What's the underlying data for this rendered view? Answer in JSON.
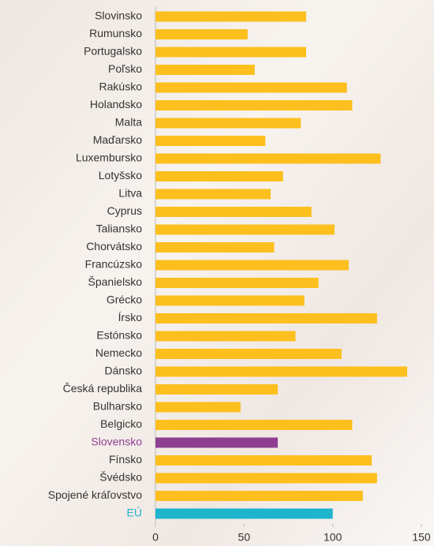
{
  "chart_data": {
    "type": "bar",
    "orientation": "horizontal",
    "categories": [
      "Slovinsko",
      "Rumunsko",
      "Portugalsko",
      "Poľsko",
      "Rakúsko",
      "Holandsko",
      "Malta",
      "Maďarsko",
      "Luxembursko",
      "Lotyšsko",
      "Litva",
      "Cyprus",
      "Taliansko",
      "Chorvátsko",
      "Francúzsko",
      "Španielsko",
      "Grécko",
      "Írsko",
      "Estónsko",
      "Nemecko",
      "Dánsko",
      "Česká republika",
      "Bulharsko",
      "Belgicko",
      "Slovensko",
      "Fínsko",
      "Švédsko",
      "Spojené kráľovstvo",
      "EÚ"
    ],
    "values": [
      85,
      52,
      85,
      56,
      108,
      111,
      82,
      62,
      127,
      72,
      65,
      88,
      101,
      67,
      109,
      92,
      84,
      125,
      79,
      105,
      142,
      69,
      48,
      111,
      69,
      122,
      125,
      117,
      100
    ],
    "color": "#fcbf1e",
    "colors": [
      "#fcbf1e",
      "#fcbf1e",
      "#fcbf1e",
      "#fcbf1e",
      "#fcbf1e",
      "#fcbf1e",
      "#fcbf1e",
      "#fcbf1e",
      "#fcbf1e",
      "#fcbf1e",
      "#fcbf1e",
      "#fcbf1e",
      "#fcbf1e",
      "#fcbf1e",
      "#fcbf1e",
      "#fcbf1e",
      "#fcbf1e",
      "#fcbf1e",
      "#fcbf1e",
      "#fcbf1e",
      "#fcbf1e",
      "#fcbf1e",
      "#fcbf1e",
      "#fcbf1e",
      "#8e3f92",
      "#fcbf1e",
      "#fcbf1e",
      "#fcbf1e",
      "#1db4cc"
    ],
    "xlim": [
      0,
      150
    ],
    "xticks": [
      0,
      50,
      100,
      150
    ]
  }
}
